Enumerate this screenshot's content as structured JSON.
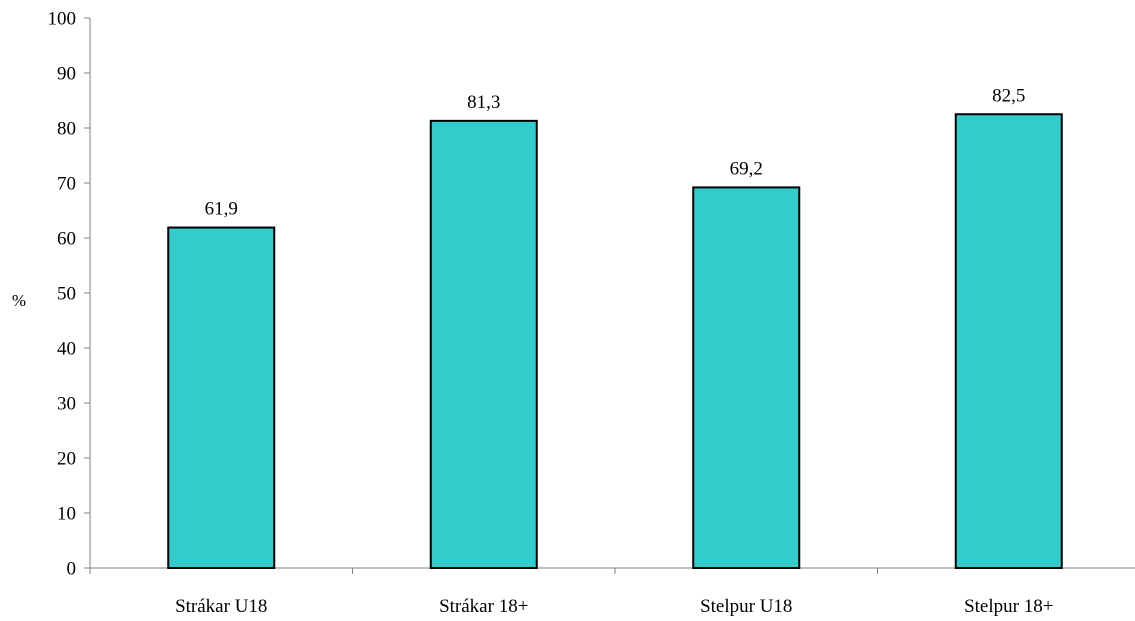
{
  "chart_data": {
    "type": "bar",
    "categories": [
      "Strákar U18",
      "Strákar 18+",
      "Stelpur U18",
      "Stelpur 18+"
    ],
    "values": [
      61.9,
      81.3,
      69.2,
      82.5
    ],
    "value_labels": [
      "61,9",
      "81,3",
      "69,2",
      "82,5"
    ],
    "title": "",
    "xlabel": "",
    "ylabel": "%",
    "ylim": [
      0,
      100
    ],
    "yticks": [
      0,
      10,
      20,
      30,
      40,
      50,
      60,
      70,
      80,
      90,
      100
    ],
    "grid": false,
    "legend": "none",
    "colors": {
      "bar_fill": "#33CCCC",
      "bar_stroke": "#000000",
      "axis": "#808080"
    }
  }
}
